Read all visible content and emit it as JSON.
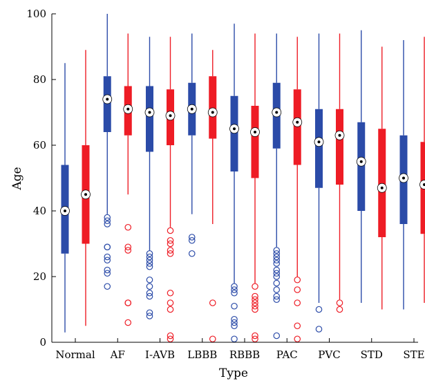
{
  "chart_data": {
    "type": "boxplot",
    "title": "",
    "xlabel": "Type",
    "ylabel": "Age",
    "ylim": [
      0,
      100
    ],
    "yticks": [
      0,
      20,
      40,
      60,
      80,
      100
    ],
    "grid": false,
    "categories": [
      "Normal",
      "AF",
      "I-AVB",
      "LBBB",
      "RBBB",
      "PAC",
      "PVC",
      "STD",
      "STE"
    ],
    "series": [
      {
        "color": "#2B4BA8",
        "boxes": [
          {
            "q1": 27,
            "median": 40,
            "q3": 54,
            "whisker_low": 3,
            "whisker_high": 85,
            "outliers": []
          },
          {
            "q1": 64,
            "median": 74,
            "q3": 81,
            "whisker_low": 39,
            "whisker_high": 100,
            "outliers": [
              17,
              21,
              22,
              25,
              26,
              29,
              29,
              36,
              37,
              38
            ]
          },
          {
            "q1": 58,
            "median": 70,
            "q3": 78,
            "whisker_low": 28,
            "whisker_high": 93,
            "outliers": [
              8,
              9,
              14,
              15,
              17,
              19,
              23,
              24,
              25,
              26,
              27
            ]
          },
          {
            "q1": 63,
            "median": 71,
            "q3": 79,
            "whisker_low": 39,
            "whisker_high": 94,
            "outliers": [
              27,
              31,
              32
            ]
          },
          {
            "q1": 52,
            "median": 65,
            "q3": 75,
            "whisker_low": 18,
            "whisker_high": 97,
            "outliers": [
              1,
              5,
              6,
              7,
              11,
              15,
              16,
              17
            ]
          },
          {
            "q1": 59,
            "median": 70,
            "q3": 79,
            "whisker_low": 29,
            "whisker_high": 94,
            "outliers": [
              2,
              13,
              14,
              16,
              18,
              20,
              21,
              22,
              24,
              25,
              26,
              27,
              28
            ]
          },
          {
            "q1": 47,
            "median": 61,
            "q3": 71,
            "whisker_low": 12,
            "whisker_high": 94,
            "outliers": [
              4,
              10
            ]
          },
          {
            "q1": 40,
            "median": 55,
            "q3": 67,
            "whisker_low": 12,
            "whisker_high": 95,
            "outliers": []
          },
          {
            "q1": 36,
            "median": 50,
            "q3": 63,
            "whisker_low": 10,
            "whisker_high": 92,
            "outliers": []
          }
        ]
      },
      {
        "color": "#EE1C25",
        "boxes": [
          {
            "q1": 30,
            "median": 45,
            "q3": 60,
            "whisker_low": 5,
            "whisker_high": 89,
            "outliers": []
          },
          {
            "q1": 63,
            "median": 71,
            "q3": 78,
            "whisker_low": 45,
            "whisker_high": 94,
            "outliers": [
              6,
              12,
              12,
              28,
              29,
              35
            ]
          },
          {
            "q1": 60,
            "median": 69,
            "q3": 77,
            "whisker_low": 35,
            "whisker_high": 93,
            "outliers": [
              1,
              2,
              10,
              12,
              15,
              27,
              28,
              30,
              31,
              34
            ]
          },
          {
            "q1": 62,
            "median": 70,
            "q3": 81,
            "whisker_low": 36,
            "whisker_high": 89,
            "outliers": [
              1,
              12
            ]
          },
          {
            "q1": 50,
            "median": 64,
            "q3": 72,
            "whisker_low": 18,
            "whisker_high": 94,
            "outliers": [
              1,
              2,
              10,
              11,
              12,
              13,
              14,
              17
            ]
          },
          {
            "q1": 54,
            "median": 67,
            "q3": 77,
            "whisker_low": 20,
            "whisker_high": 93,
            "outliers": [
              1,
              5,
              12,
              16,
              19
            ]
          },
          {
            "q1": 48,
            "median": 63,
            "q3": 71,
            "whisker_low": 13,
            "whisker_high": 94,
            "outliers": [
              10,
              12
            ]
          },
          {
            "q1": 32,
            "median": 47,
            "q3": 65,
            "whisker_low": 10,
            "whisker_high": 90,
            "outliers": []
          },
          {
            "q1": 33,
            "median": 48,
            "q3": 61,
            "whisker_low": 12,
            "whisker_high": 93,
            "outliers": []
          }
        ]
      }
    ]
  }
}
